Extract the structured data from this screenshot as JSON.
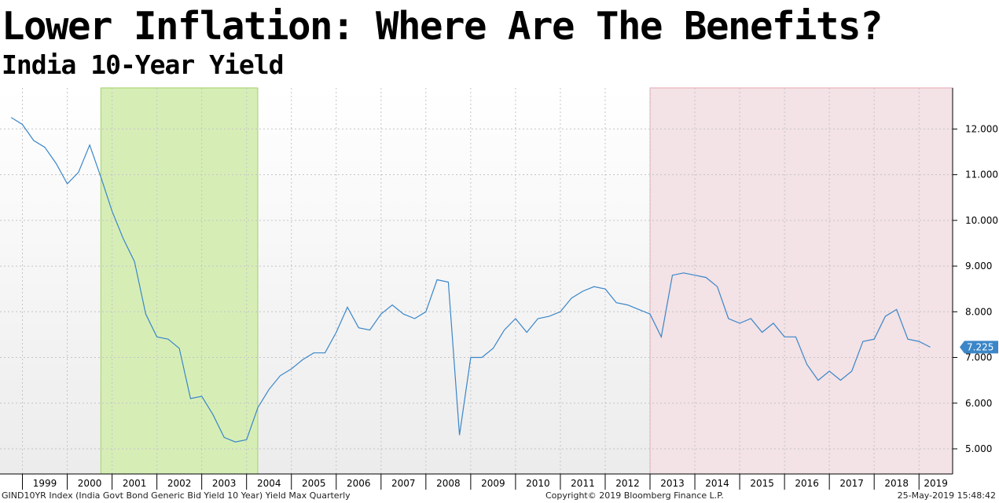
{
  "header": {
    "title": "Lower Inflation: Where Are The Benefits?",
    "subtitle": "India 10-Year Yield"
  },
  "footer": {
    "index_label": "GIND10YR Index (India Govt Bond Generic Bid Yield 10 Year) Yield Max  Quarterly",
    "copyright": "Copyright© 2019 Bloomberg Finance L.P.",
    "timestamp": "25-May-2019 15:48:42"
  },
  "colors": {
    "line": "#3a86c8",
    "green_region": "#d6eeb6",
    "green_border": "#a3d06a",
    "red_region": "#f3e2e6",
    "red_border": "#e4a6b2",
    "last_badge": "#3a86c8"
  },
  "chart_data": {
    "type": "line",
    "frequency": "quarterly",
    "x_unit": "year",
    "ylim": [
      4.45,
      12.9
    ],
    "y_axis_side": "right",
    "y_ticks": [
      5,
      6,
      7,
      8,
      9,
      10,
      11,
      12
    ],
    "y_tick_labels": [
      "5.000",
      "6.000",
      "7.000",
      "8.000",
      "9.000",
      "10.000",
      "11.000",
      "12.000"
    ],
    "x_ticks": [
      "1999",
      "2000",
      "2001",
      "2002",
      "2003",
      "2004",
      "2005",
      "2006",
      "2007",
      "2008",
      "2009",
      "2010",
      "2011",
      "2012",
      "2013",
      "2014",
      "2015",
      "2016",
      "2017",
      "2018",
      "2019"
    ],
    "grid": true,
    "last_value_label": "7.225",
    "series": [
      {
        "x": [
          1998.75,
          1999.0,
          1999.25,
          1999.5,
          1999.75,
          2000.0,
          2000.25,
          2000.5,
          2000.75,
          2001.0,
          2001.25,
          2001.5,
          2001.75,
          2002.0,
          2002.25,
          2002.5,
          2002.75,
          2003.0,
          2003.25,
          2003.5,
          2003.75,
          2004.0,
          2004.25,
          2004.5,
          2004.75,
          2005.0,
          2005.25,
          2005.5,
          2005.75,
          2006.0,
          2006.25,
          2006.5,
          2006.75,
          2007.0,
          2007.25,
          2007.5,
          2007.75,
          2008.0,
          2008.25,
          2008.5,
          2008.75,
          2009.0,
          2009.25,
          2009.5,
          2009.75,
          2010.0,
          2010.25,
          2010.5,
          2010.75,
          2011.0,
          2011.25,
          2011.5,
          2011.75,
          2012.0,
          2012.25,
          2012.5,
          2012.75,
          2013.0,
          2013.25,
          2013.5,
          2013.75,
          2014.0,
          2014.25,
          2014.5,
          2014.75,
          2015.0,
          2015.25,
          2015.5,
          2015.75,
          2016.0,
          2016.25,
          2016.5,
          2016.75,
          2017.0,
          2017.25,
          2017.5,
          2017.75,
          2018.0,
          2018.25,
          2018.5,
          2018.75,
          2019.0,
          2019.25
        ],
        "values": [
          12.25,
          12.1,
          11.75,
          11.6,
          11.25,
          10.8,
          11.05,
          11.65,
          10.95,
          10.2,
          9.6,
          9.1,
          7.95,
          7.45,
          7.4,
          7.2,
          6.1,
          6.15,
          5.75,
          5.25,
          5.15,
          5.2,
          5.9,
          6.3,
          6.6,
          6.75,
          6.95,
          7.1,
          7.1,
          7.55,
          8.1,
          7.65,
          7.6,
          7.95,
          8.15,
          7.95,
          7.85,
          8.0,
          8.7,
          8.65,
          5.3,
          7.0,
          7.0,
          7.2,
          7.6,
          7.85,
          7.55,
          7.85,
          7.9,
          8.0,
          8.3,
          8.45,
          8.55,
          8.5,
          8.2,
          8.15,
          8.05,
          7.95,
          7.45,
          8.8,
          8.85,
          8.8,
          8.75,
          8.55,
          7.85,
          7.75,
          7.85,
          7.55,
          7.75,
          7.45,
          7.45,
          6.85,
          6.5,
          6.7,
          6.5,
          6.7,
          7.35,
          7.4,
          7.9,
          8.05,
          7.4,
          7.35,
          7.225
        ]
      }
    ],
    "shaded_regions": [
      {
        "start": 2000.75,
        "end": 2004.25,
        "color": "green"
      },
      {
        "start": 2013.0,
        "end": 2019.75,
        "color": "red"
      }
    ]
  }
}
